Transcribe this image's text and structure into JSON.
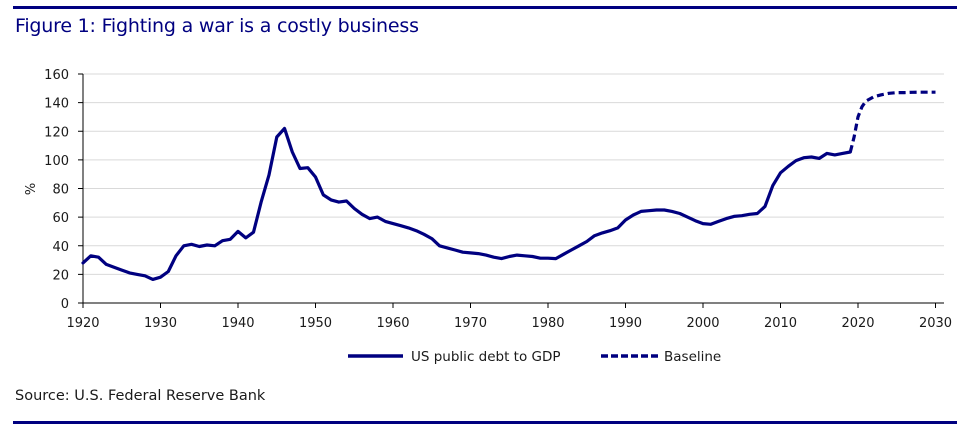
{
  "figure": {
    "title": "Figure 1: Fighting a war is a costly business",
    "source": "Source: U.S. Federal Reserve Bank"
  },
  "colors": {
    "series": "#000080",
    "rule": "#000080",
    "grid": "#d9d9d9",
    "axis": "#000000",
    "text": "#1a1a1a"
  },
  "chart_data": {
    "type": "line",
    "title": "Figure 1: Fighting a war is a costly business",
    "xlabel": "",
    "ylabel": "%",
    "xlim": [
      1920,
      2030
    ],
    "ylim": [
      0,
      160
    ],
    "grid": true,
    "legend_position": "bottom-center",
    "x_ticks": [
      "1920",
      "1930",
      "1940",
      "1950",
      "1960",
      "1970",
      "1980",
      "1990",
      "2000",
      "2010",
      "2020",
      "2030"
    ],
    "y_ticks": [
      "0",
      "20",
      "40",
      "60",
      "80",
      "100",
      "120",
      "140",
      "160"
    ],
    "series": [
      {
        "name": "US public debt to GDP",
        "style": "solid",
        "x": [
          1920,
          1921,
          1922,
          1923,
          1924,
          1925,
          1926,
          1927,
          1928,
          1929,
          1930,
          1931,
          1932,
          1933,
          1934,
          1935,
          1936,
          1937,
          1938,
          1939,
          1940,
          1941,
          1942,
          1943,
          1944,
          1945,
          1946,
          1947,
          1948,
          1949,
          1950,
          1951,
          1952,
          1953,
          1954,
          1955,
          1956,
          1957,
          1958,
          1959,
          1960,
          1961,
          1962,
          1963,
          1964,
          1965,
          1966,
          1967,
          1968,
          1969,
          1970,
          1971,
          1972,
          1973,
          1974,
          1975,
          1976,
          1977,
          1978,
          1979,
          1980,
          1981,
          1982,
          1983,
          1984,
          1985,
          1986,
          1987,
          1988,
          1989,
          1990,
          1991,
          1992,
          1993,
          1994,
          1995,
          1996,
          1997,
          1998,
          1999,
          2000,
          2001,
          2002,
          2003,
          2004,
          2005,
          2006,
          2007,
          2008,
          2009,
          2010,
          2011,
          2012,
          2013,
          2014,
          2015,
          2016,
          2017,
          2018,
          2019
        ],
        "values": [
          28,
          33,
          32,
          27,
          25,
          23,
          21,
          20,
          19,
          16.5,
          18,
          22,
          33,
          40,
          41,
          39.5,
          40.5,
          40,
          43.5,
          44.5,
          50,
          45.5,
          49.5,
          71,
          89.5,
          116,
          122,
          105.5,
          94,
          94.5,
          88,
          75.5,
          72,
          70.5,
          71.3,
          66,
          62,
          59,
          60,
          57,
          55.5,
          54,
          52.5,
          50.5,
          48,
          45,
          40,
          38.5,
          37,
          35.5,
          35,
          34.5,
          33.5,
          32,
          31,
          32.5,
          33.5,
          33,
          32.5,
          31.3,
          31.3,
          31,
          34,
          37,
          40,
          43,
          47,
          49,
          50.5,
          52.5,
          58,
          61.5,
          64,
          64.5,
          65,
          65,
          64,
          62.5,
          60,
          57.5,
          55.5,
          55,
          57,
          59,
          60.5,
          61,
          62,
          62.5,
          67.5,
          82,
          91,
          95.5,
          99.5,
          101.5,
          102,
          101,
          104.5,
          103.5,
          104.5,
          105.5
        ]
      },
      {
        "name": "Baseline",
        "style": "dashed",
        "x": [
          2019,
          2019.5,
          2020,
          2020.5,
          2021,
          2022,
          2023,
          2024,
          2025,
          2026,
          2027,
          2028,
          2029,
          2030
        ],
        "values": [
          105.5,
          116,
          130,
          137,
          141,
          144,
          145.5,
          146.5,
          147,
          147,
          147.2,
          147.3,
          147.3,
          147.3
        ]
      }
    ]
  }
}
